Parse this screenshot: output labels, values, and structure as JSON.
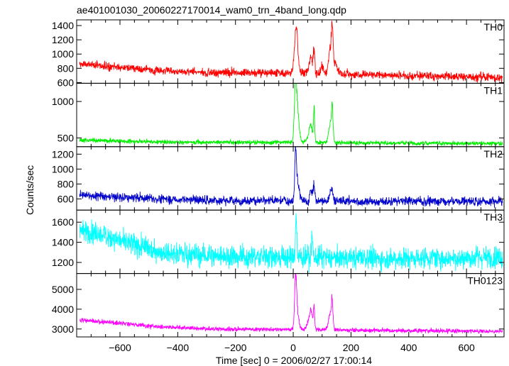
{
  "chart_data": {
    "type": "line",
    "title": "ae401001030_20060227170014_wam0_trn_4band_long.qdp",
    "xlabel": "Time [sec] 0 = 2006/02/27 17:00:14",
    "ylabel": "Counts/sec",
    "xlim": [
      -750,
      730
    ],
    "x_range": [
      -740,
      725
    ],
    "x_ticks": [
      -600,
      -400,
      -200,
      0,
      200,
      400,
      600
    ],
    "x_tick_labels": [
      "−600",
      "−400",
      "−200",
      "0",
      "200",
      "400",
      "600"
    ],
    "grid": false,
    "panels": [
      {
        "name": "TH0",
        "color": "#ff0000",
        "ylim": [
          590,
          1480
        ],
        "y_ticks": [
          600,
          800,
          1000,
          1200,
          1400
        ],
        "baseline": [
          [
            -740,
            860
          ],
          [
            -600,
            815
          ],
          [
            -500,
            775
          ],
          [
            -300,
            745
          ],
          [
            0,
            735
          ],
          [
            300,
            710
          ],
          [
            500,
            690
          ],
          [
            725,
            670
          ]
        ],
        "noise": 30,
        "spikes": [
          [
            10,
            1480,
            8
          ],
          [
            55,
            800,
            10
          ],
          [
            62,
            950,
            6
          ],
          [
            72,
            1080,
            4
          ],
          [
            100,
            850,
            6
          ],
          [
            128,
            1100,
            8
          ],
          [
            135,
            1310,
            4
          ],
          [
            145,
            900,
            10
          ]
        ]
      },
      {
        "name": "TH1",
        "color": "#00ee00",
        "ylim": [
          380,
          1250
        ],
        "y_ticks": [
          500,
          1000
        ],
        "baseline": [
          [
            -740,
            470
          ],
          [
            -600,
            455
          ],
          [
            -300,
            440
          ],
          [
            0,
            440
          ],
          [
            300,
            430
          ],
          [
            725,
            425
          ]
        ],
        "noise": 15,
        "spikes": [
          [
            8,
            1230,
            6
          ],
          [
            15,
            850,
            8
          ],
          [
            55,
            560,
            10
          ],
          [
            62,
            650,
            6
          ],
          [
            72,
            950,
            3
          ],
          [
            128,
            700,
            8
          ],
          [
            135,
            900,
            4
          ]
        ]
      },
      {
        "name": "TH2",
        "color": "#0000cc",
        "ylim": [
          450,
          1300
        ],
        "y_ticks": [
          600,
          800,
          1000,
          1200
        ],
        "baseline": [
          [
            -740,
            660
          ],
          [
            -600,
            620
          ],
          [
            -400,
            590
          ],
          [
            -200,
            575
          ],
          [
            0,
            570
          ],
          [
            725,
            565
          ]
        ],
        "noise": 30,
        "spikes": [
          [
            8,
            1300,
            4
          ],
          [
            15,
            850,
            8
          ],
          [
            62,
            720,
            6
          ],
          [
            72,
            820,
            4
          ],
          [
            132,
            760,
            8
          ]
        ]
      },
      {
        "name": "TH3",
        "color": "#00ffff",
        "ylim": [
          1090,
          1720
        ],
        "y_ticks": [
          1200,
          1400,
          1600
        ],
        "baseline": [
          [
            -740,
            1520
          ],
          [
            -650,
            1470
          ],
          [
            -550,
            1370
          ],
          [
            -450,
            1300
          ],
          [
            -300,
            1270
          ],
          [
            0,
            1250
          ],
          [
            300,
            1240
          ],
          [
            725,
            1250
          ]
        ],
        "noise": 55,
        "spikes": [
          [
            10,
            1720,
            3
          ],
          [
            65,
            1470,
            4
          ]
        ]
      },
      {
        "name": "TH0123",
        "color": "#ff00ff",
        "ylim": [
          2600,
          5800
        ],
        "y_ticks": [
          3000,
          4000,
          5000
        ],
        "baseline": [
          [
            -740,
            3450
          ],
          [
            -600,
            3300
          ],
          [
            -500,
            3150
          ],
          [
            -300,
            3000
          ],
          [
            0,
            2980
          ],
          [
            300,
            2930
          ],
          [
            725,
            2880
          ]
        ],
        "noise": 55,
        "spikes": [
          [
            8,
            5800,
            5
          ],
          [
            15,
            3800,
            8
          ],
          [
            55,
            3500,
            10
          ],
          [
            62,
            3800,
            6
          ],
          [
            72,
            4400,
            3
          ],
          [
            128,
            3900,
            8
          ],
          [
            135,
            4300,
            4
          ]
        ]
      }
    ]
  }
}
